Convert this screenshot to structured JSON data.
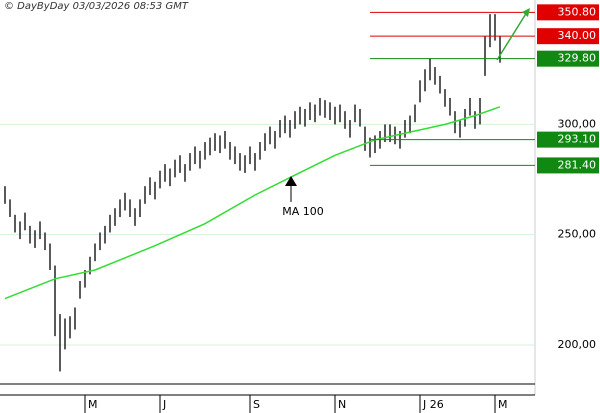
{
  "chart_data": {
    "type": "ohlc",
    "header": "© DayByDay 03/03/2026  08:53 GMT",
    "annotation": "MA 100",
    "xlim": [
      -1,
      106
    ],
    "ylim": [
      182.3,
      356.4
    ],
    "yticks": [
      {
        "value": 200,
        "label": "200,00"
      },
      {
        "value": 250,
        "label": "250,00"
      },
      {
        "value": 300,
        "label": "300,00"
      }
    ],
    "xticks": [
      {
        "value": 16,
        "label": "M"
      },
      {
        "value": 31,
        "label": "J"
      },
      {
        "value": 49,
        "label": "S"
      },
      {
        "value": 66,
        "label": "N"
      },
      {
        "value": 83,
        "label": "J 26"
      },
      {
        "value": 98,
        "label": "M"
      }
    ],
    "grid": true,
    "bars": {
      "color": "#000000",
      "high": [
        272,
        266,
        259,
        256,
        260,
        254,
        252,
        256,
        251,
        246,
        236,
        214,
        212,
        213,
        217,
        229,
        234,
        240,
        246,
        251,
        254,
        259,
        262,
        266,
        269,
        266,
        262,
        266,
        272,
        276,
        274,
        279,
        282,
        280,
        284,
        286,
        282,
        287,
        290,
        288,
        292,
        294,
        296,
        295,
        297,
        292,
        290,
        287,
        286,
        290,
        287,
        292,
        296,
        299,
        297,
        302,
        304,
        302,
        306,
        308,
        307,
        310,
        309,
        312,
        311,
        310,
        308,
        309,
        306,
        302,
        309,
        307,
        299,
        294,
        295,
        297,
        300,
        300,
        299,
        297,
        302,
        304,
        309,
        320,
        325,
        330,
        326,
        322,
        316,
        312,
        306,
        302,
        307,
        312,
        306,
        312,
        340,
        350,
        350,
        340
      ],
      "low": [
        264,
        258,
        251,
        248,
        252,
        246,
        244,
        248,
        243,
        234,
        204,
        188,
        198,
        203,
        207,
        221,
        226,
        232,
        238,
        243,
        246,
        251,
        254,
        258,
        261,
        258,
        254,
        258,
        264,
        268,
        266,
        271,
        274,
        272,
        276,
        278,
        274,
        279,
        282,
        280,
        284,
        286,
        288,
        287,
        289,
        284,
        282,
        279,
        278,
        282,
        279,
        284,
        288,
        291,
        289,
        294,
        296,
        294,
        298,
        300,
        299,
        302,
        301,
        304,
        303,
        302,
        300,
        301,
        298,
        294,
        301,
        299,
        288,
        285,
        287,
        289,
        292,
        292,
        291,
        289,
        294,
        296,
        301,
        310,
        315,
        320,
        318,
        314,
        308,
        304,
        296,
        294,
        299,
        304,
        298,
        300,
        322,
        335,
        338,
        328
      ]
    },
    "ma": {
      "color": "#33dd33",
      "x": [
        0,
        10,
        18,
        30,
        40,
        50,
        58,
        66,
        74,
        82,
        88,
        94,
        99
      ],
      "values": [
        221,
        230,
        234,
        245,
        255,
        268,
        277,
        286,
        293,
        297,
        300,
        304,
        308
      ]
    },
    "levels": [
      {
        "value": 350.8,
        "label": "350.80",
        "color": "#e00000"
      },
      {
        "value": 340,
        "label": "340.00",
        "color": "#e00000"
      },
      {
        "value": 329.8,
        "label": "329.80",
        "color": "#118811"
      },
      {
        "value": 293.1,
        "label": "293.10",
        "color": "#118811"
      },
      {
        "value": 281.4,
        "label": "281.40",
        "color": "#118811"
      }
    ]
  }
}
